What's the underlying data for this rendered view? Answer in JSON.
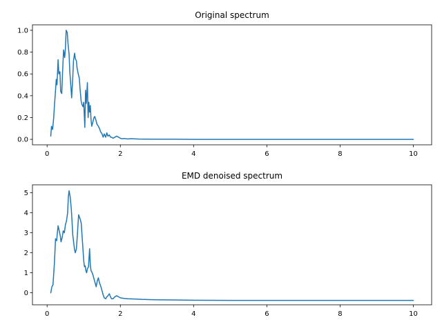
{
  "colors": {
    "series": "#1f77b4",
    "axes": "#000000",
    "background": "#ffffff"
  },
  "chart_data": [
    {
      "type": "line",
      "title": "Original spectrum",
      "xlabel": "",
      "ylabel": "",
      "xlim": [
        -0.4,
        10.5
      ],
      "ylim": [
        -0.05,
        1.05
      ],
      "xticks": [
        0,
        2,
        4,
        6,
        8,
        10
      ],
      "xtick_labels": [
        "0",
        "2",
        "4",
        "6",
        "8",
        "10"
      ],
      "yticks": [
        0.0,
        0.2,
        0.4,
        0.6,
        0.8,
        1.0
      ],
      "ytick_labels": [
        "0.0",
        "0.2",
        "0.4",
        "0.6",
        "0.8",
        "1.0"
      ],
      "grid": false,
      "series": [
        {
          "x": [
            0.1,
            0.12,
            0.15,
            0.18,
            0.2,
            0.22,
            0.25,
            0.27,
            0.3,
            0.32,
            0.35,
            0.37,
            0.4,
            0.42,
            0.45,
            0.48,
            0.5,
            0.52,
            0.55,
            0.57,
            0.6,
            0.62,
            0.65,
            0.67,
            0.7,
            0.72,
            0.75,
            0.77,
            0.8,
            0.82,
            0.85,
            0.88,
            0.9,
            0.93,
            0.95,
            0.98,
            1.0,
            1.03,
            1.05,
            1.07,
            1.1,
            1.12,
            1.14,
            1.16,
            1.18,
            1.2,
            1.22,
            1.25,
            1.28,
            1.3,
            1.33,
            1.36,
            1.4,
            1.43,
            1.46,
            1.5,
            1.53,
            1.56,
            1.6,
            1.63,
            1.66,
            1.7,
            1.73,
            1.76,
            1.8,
            1.85,
            1.9,
            1.95,
            2.0,
            2.05,
            2.1,
            2.2,
            2.3,
            2.5,
            2.7,
            3.0,
            3.5,
            4.0,
            5.0,
            6.0,
            7.0,
            8.0,
            9.0,
            10.0
          ],
          "y": [
            0.03,
            0.12,
            0.09,
            0.2,
            0.31,
            0.4,
            0.55,
            0.5,
            0.73,
            0.6,
            0.62,
            0.44,
            0.42,
            0.6,
            0.82,
            0.75,
            0.83,
            1.0,
            0.98,
            0.88,
            0.78,
            0.62,
            0.48,
            0.38,
            0.56,
            0.72,
            0.79,
            0.74,
            0.72,
            0.65,
            0.6,
            0.56,
            0.46,
            0.35,
            0.32,
            0.3,
            0.34,
            0.11,
            0.45,
            0.33,
            0.52,
            0.2,
            0.34,
            0.25,
            0.31,
            0.18,
            0.12,
            0.16,
            0.2,
            0.21,
            0.18,
            0.14,
            0.12,
            0.1,
            0.07,
            0.05,
            0.02,
            0.05,
            0.02,
            0.06,
            0.03,
            0.04,
            0.02,
            0.02,
            0.01,
            0.02,
            0.03,
            0.02,
            0.01,
            0.005,
            0.008,
            0.004,
            0.006,
            0.003,
            0.002,
            0.001,
            0.001,
            0.0,
            0.0,
            0.0,
            0.0,
            0.0,
            0.0,
            0.0
          ]
        }
      ]
    },
    {
      "type": "line",
      "title": "EMD denoised spectrum",
      "xlabel": "",
      "ylabel": "",
      "xlim": [
        -0.4,
        10.5
      ],
      "ylim": [
        -0.6,
        5.4
      ],
      "xticks": [
        0,
        2,
        4,
        6,
        8,
        10
      ],
      "xtick_labels": [
        "0",
        "2",
        "4",
        "6",
        "8",
        "10"
      ],
      "yticks": [
        0,
        1,
        2,
        3,
        4,
        5
      ],
      "ytick_labels": [
        "0",
        "1",
        "2",
        "3",
        "4",
        "5"
      ],
      "grid": false,
      "series": [
        {
          "x": [
            0.1,
            0.13,
            0.16,
            0.2,
            0.23,
            0.26,
            0.28,
            0.3,
            0.33,
            0.36,
            0.38,
            0.41,
            0.44,
            0.47,
            0.5,
            0.53,
            0.56,
            0.58,
            0.6,
            0.63,
            0.66,
            0.68,
            0.7,
            0.72,
            0.75,
            0.77,
            0.8,
            0.83,
            0.86,
            0.9,
            0.93,
            0.96,
            1.0,
            1.02,
            1.04,
            1.06,
            1.08,
            1.1,
            1.13,
            1.16,
            1.18,
            1.2,
            1.22,
            1.25,
            1.28,
            1.31,
            1.34,
            1.37,
            1.4,
            1.43,
            1.47,
            1.5,
            1.53,
            1.56,
            1.6,
            1.63,
            1.66,
            1.7,
            1.73,
            1.76,
            1.8,
            1.85,
            1.9,
            1.95,
            2.0,
            2.1,
            2.2,
            2.4,
            2.6,
            2.8,
            3.0,
            3.5,
            4.0,
            5.0,
            6.0,
            7.0,
            8.0,
            9.0,
            10.0
          ],
          "y": [
            0.0,
            0.3,
            0.4,
            1.5,
            2.7,
            2.6,
            3.0,
            3.35,
            3.1,
            2.85,
            2.55,
            2.75,
            3.1,
            3.0,
            3.4,
            3.6,
            4.0,
            4.8,
            5.1,
            4.8,
            4.2,
            3.6,
            2.9,
            2.6,
            2.15,
            2.0,
            2.2,
            3.0,
            3.9,
            3.7,
            3.5,
            2.7,
            1.6,
            1.3,
            1.35,
            1.1,
            1.0,
            1.2,
            1.3,
            2.2,
            1.4,
            1.1,
            1.05,
            0.9,
            0.7,
            0.5,
            0.3,
            0.6,
            0.75,
            0.5,
            0.3,
            0.1,
            -0.1,
            -0.25,
            -0.3,
            -0.2,
            -0.15,
            -0.05,
            -0.2,
            -0.3,
            -0.3,
            -0.2,
            -0.15,
            -0.2,
            -0.25,
            -0.28,
            -0.3,
            -0.31,
            -0.33,
            -0.34,
            -0.35,
            -0.36,
            -0.37,
            -0.38,
            -0.38,
            -0.38,
            -0.38,
            -0.38,
            -0.38
          ]
        }
      ]
    }
  ]
}
